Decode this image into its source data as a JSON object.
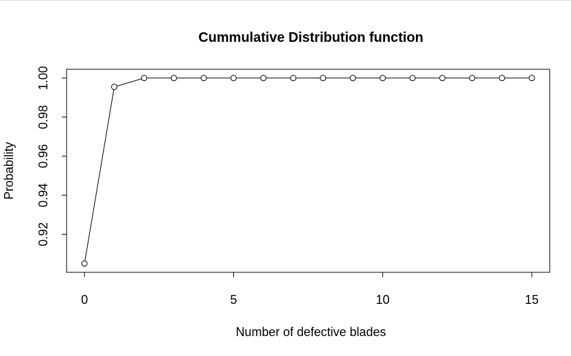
{
  "chart_data": {
    "type": "line",
    "title": "Cummulative Distribution function",
    "xlabel": "Number of defective blades",
    "ylabel": "Probability",
    "x": [
      0,
      1,
      2,
      3,
      4,
      5,
      6,
      7,
      8,
      9,
      10,
      11,
      12,
      13,
      14,
      15
    ],
    "series": [
      {
        "values": [
          0.905,
          0.9955,
          1.0,
          1.0,
          1.0,
          1.0,
          1.0,
          1.0,
          1.0,
          1.0,
          1.0,
          1.0,
          1.0,
          1.0,
          1.0,
          1.0
        ]
      }
    ],
    "xticks": [
      "0",
      "5",
      "10",
      "15"
    ],
    "yticks": [
      "0.92",
      "0.94",
      "0.96",
      "0.98",
      "1.00"
    ],
    "xlim": [
      -0.6,
      15.6
    ],
    "ylim": [
      0.9005,
      1.0045
    ],
    "grid": false,
    "markers": "open-circle"
  }
}
